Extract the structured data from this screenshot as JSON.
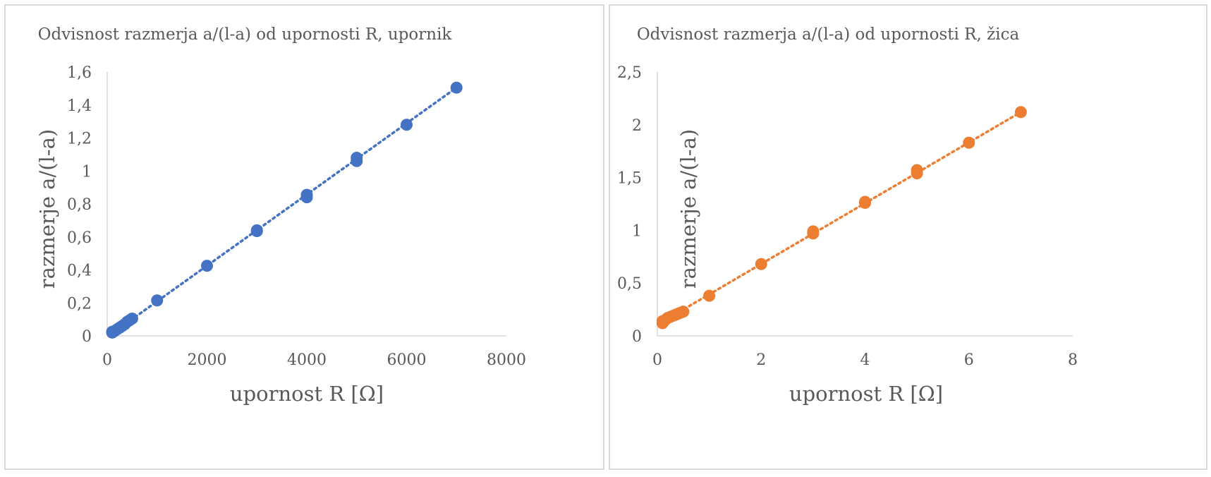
{
  "chart_data": [
    {
      "type": "scatter",
      "title": "Odvisnost razmerja a/(l-a) od upornosti R, upornik",
      "xlabel": "upornost R [Ω]",
      "ylabel": "razmerje a/(l-a)",
      "xlim": [
        0,
        8000
      ],
      "ylim": [
        0,
        1.6
      ],
      "xticks": [
        0,
        2000,
        4000,
        6000,
        8000
      ],
      "xtick_labels": [
        "0",
        "2000",
        "4000",
        "6000",
        "8000"
      ],
      "yticks": [
        0,
        0.2,
        0.4,
        0.6,
        0.8,
        1.0,
        1.2,
        1.4,
        1.6
      ],
      "ytick_labels": [
        "0",
        "0,2",
        "0,4",
        "0,6",
        "0,8",
        "1",
        "1,2",
        "1,4",
        "1,6"
      ],
      "color": "#4472c4",
      "trendline": {
        "style": "dotted",
        "linear": true,
        "x": [
          100,
          7000
        ],
        "y": [
          0.015,
          1.505
        ]
      },
      "series": [
        {
          "name": "upornik",
          "x": [
            100,
            100,
            150,
            200,
            250,
            300,
            350,
            400,
            450,
            500,
            1000,
            2000,
            3000,
            3000,
            4000,
            4000,
            5000,
            5000,
            6000,
            7000
          ],
          "y": [
            0.02,
            0.025,
            0.03,
            0.04,
            0.05,
            0.06,
            0.07,
            0.085,
            0.095,
            0.105,
            0.215,
            0.425,
            0.635,
            0.64,
            0.84,
            0.855,
            1.06,
            1.08,
            1.28,
            1.505
          ]
        }
      ]
    },
    {
      "type": "scatter",
      "title": "Odvisnost razmerja a/(l-a) od upornosti R, žica",
      "xlabel": "upornost R [Ω]",
      "ylabel": "razmerje a/(l-a)",
      "xlim": [
        0,
        8
      ],
      "ylim": [
        0,
        2.5
      ],
      "xticks": [
        0,
        2,
        4,
        6,
        8
      ],
      "xtick_labels": [
        "0",
        "2",
        "4",
        "6",
        "8"
      ],
      "yticks": [
        0,
        0.5,
        1.0,
        1.5,
        2.0,
        2.5
      ],
      "ytick_labels": [
        "0",
        "0,5",
        "1",
        "1,5",
        "2",
        "2,5"
      ],
      "color": "#ed7d31",
      "trendline": {
        "style": "dotted",
        "linear": true,
        "x": [
          0.05,
          7
        ],
        "y": [
          0.12,
          2.12
        ]
      },
      "series": [
        {
          "name": "žica",
          "x": [
            0.1,
            0.1,
            0.15,
            0.2,
            0.25,
            0.3,
            0.35,
            0.4,
            0.45,
            0.5,
            1,
            2,
            3,
            3,
            4,
            4,
            5,
            5,
            6,
            7
          ],
          "y": [
            0.12,
            0.14,
            0.15,
            0.17,
            0.18,
            0.19,
            0.2,
            0.21,
            0.22,
            0.23,
            0.38,
            0.68,
            0.97,
            0.99,
            1.26,
            1.27,
            1.54,
            1.57,
            1.83,
            2.12
          ]
        }
      ]
    }
  ]
}
